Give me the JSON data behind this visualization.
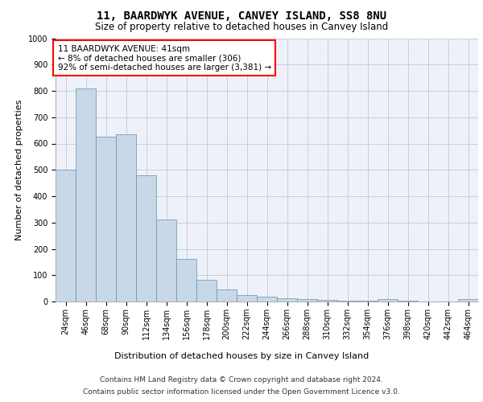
{
  "title": "11, BAARDWYK AVENUE, CANVEY ISLAND, SS8 8NU",
  "subtitle": "Size of property relative to detached houses in Canvey Island",
  "xlabel": "Distribution of detached houses by size in Canvey Island",
  "ylabel": "Number of detached properties",
  "categories": [
    "24sqm",
    "46sqm",
    "68sqm",
    "90sqm",
    "112sqm",
    "134sqm",
    "156sqm",
    "178sqm",
    "200sqm",
    "222sqm",
    "244sqm",
    "266sqm",
    "288sqm",
    "310sqm",
    "332sqm",
    "354sqm",
    "376sqm",
    "398sqm",
    "420sqm",
    "442sqm",
    "464sqm"
  ],
  "values": [
    500,
    810,
    625,
    635,
    480,
    312,
    163,
    82,
    47,
    25,
    17,
    12,
    10,
    5,
    3,
    2,
    8,
    2,
    0,
    0,
    8
  ],
  "bar_color": "#c8d8e8",
  "bar_edge_color": "#6090b0",
  "annotation_box_text": "11 BAARDWYK AVENUE: 41sqm\n← 8% of detached houses are smaller (306)\n92% of semi-detached houses are larger (3,381) →",
  "ylim": [
    0,
    1000
  ],
  "yticks": [
    0,
    100,
    200,
    300,
    400,
    500,
    600,
    700,
    800,
    900,
    1000
  ],
  "grid_color": "#c0c8d8",
  "bg_color": "#eef2f8",
  "footer_line1": "Contains HM Land Registry data © Crown copyright and database right 2024.",
  "footer_line2": "Contains public sector information licensed under the Open Government Licence v3.0.",
  "title_fontsize": 10,
  "subtitle_fontsize": 8.5,
  "annotation_fontsize": 7.5,
  "axis_label_fontsize": 8,
  "tick_fontsize": 7,
  "footer_fontsize": 6.5,
  "xlabel_fontsize": 8
}
